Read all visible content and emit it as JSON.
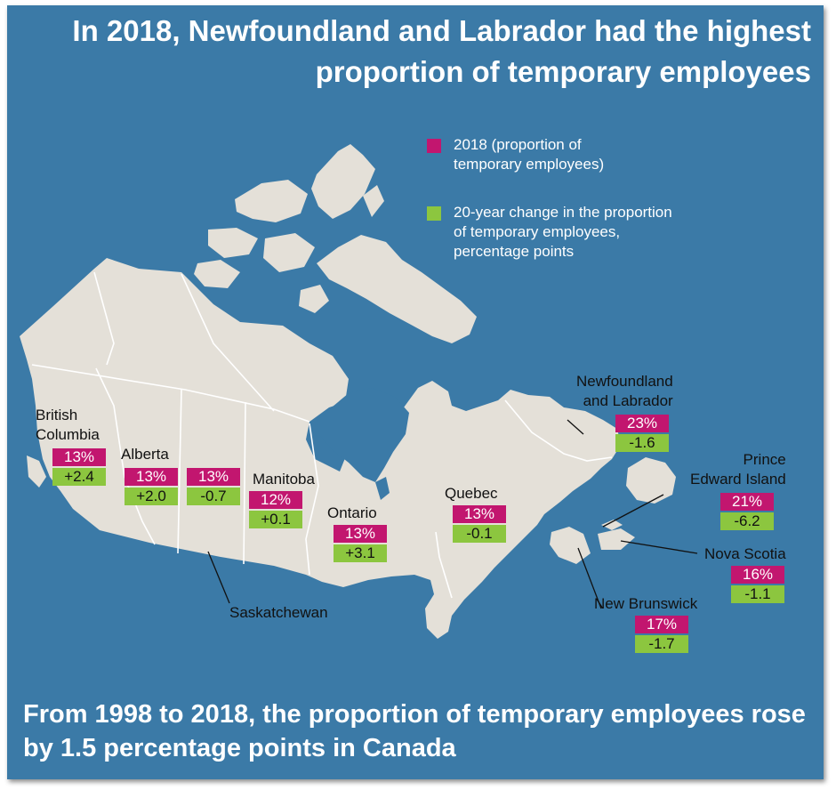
{
  "title": "In 2018, Newfoundland and Labrador had the highest proportion of temporary employees",
  "footer": "From 1998 to 2018, the proportion of temporary employees rose by 1.5 percentage points in Canada",
  "colors": {
    "background": "#3b7aa7",
    "land": "#e4e0d8",
    "border_line": "#ffffff",
    "value_2018": "#c2166f",
    "change": "#8cc63f",
    "text_light": "#ffffff",
    "text_dark": "#111111"
  },
  "legend": {
    "items": [
      {
        "color": "#c2166f",
        "label": "2018 (proportion of\ntemporary employees)"
      },
      {
        "color": "#8cc63f",
        "label": "20-year change in the proportion\nof temporary employees,\npercentage points"
      }
    ]
  },
  "provinces": [
    {
      "name": "British\nColumbia",
      "value_2018": "13%",
      "change": "+2.4"
    },
    {
      "name": "Alberta",
      "value_2018": "13%",
      "change": "+2.0"
    },
    {
      "name": "Saskatchewan",
      "value_2018": "13%",
      "change": "-0.7"
    },
    {
      "name": "Manitoba",
      "value_2018": "12%",
      "change": "+0.1"
    },
    {
      "name": "Ontario",
      "value_2018": "13%",
      "change": "+3.1"
    },
    {
      "name": "Quebec",
      "value_2018": "13%",
      "change": "-0.1"
    },
    {
      "name": "Newfoundland\nand Labrador",
      "value_2018": "23%",
      "change": "-1.6"
    },
    {
      "name": "Prince\nEdward Island",
      "value_2018": "21%",
      "change": "-6.2"
    },
    {
      "name": "Nova Scotia",
      "value_2018": "16%",
      "change": "-1.1"
    },
    {
      "name": "New Brunswick",
      "value_2018": "17%",
      "change": "-1.7"
    }
  ]
}
